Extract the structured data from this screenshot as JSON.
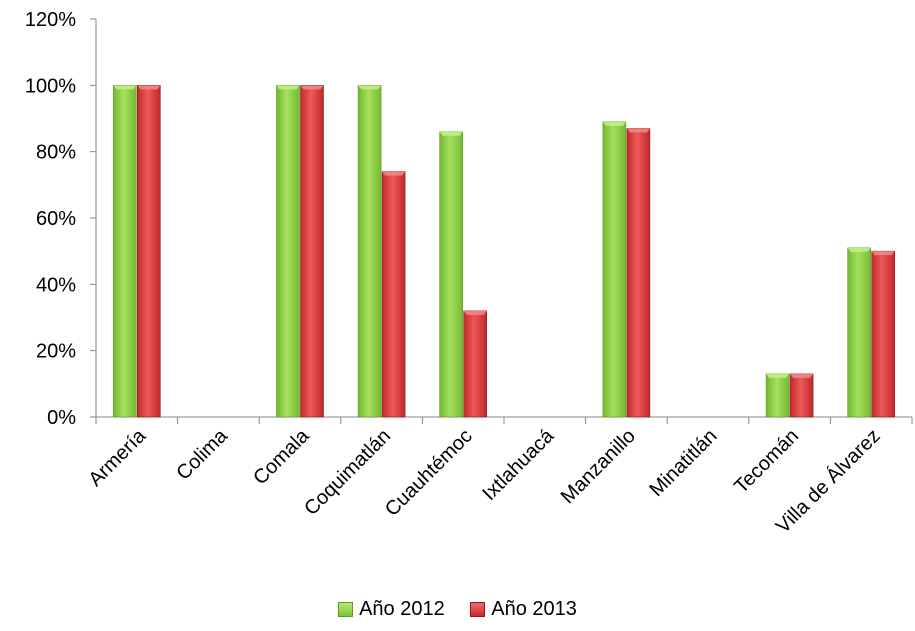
{
  "chart_data": {
    "type": "bar",
    "categories": [
      "Armería",
      "Colima",
      "Comala",
      "Coquimatlán",
      "Cuauhtémoc",
      "Ixtlahuacá",
      "Manzanillo",
      "Minatitlán",
      "Tecomán",
      "Villa de Álvarez"
    ],
    "series": [
      {
        "name": "Año 2012",
        "values": [
          100,
          0,
          100,
          100,
          86,
          0,
          89,
          0,
          13,
          51
        ],
        "color": "#7cc33a"
      },
      {
        "name": "Año 2013",
        "values": [
          100,
          0,
          100,
          74,
          32,
          0,
          87,
          0,
          13,
          50
        ],
        "color": "#d63434"
      }
    ],
    "ylim": [
      0,
      120
    ],
    "yticks": [
      "0%",
      "20%",
      "40%",
      "60%",
      "80%",
      "100%",
      "120%"
    ],
    "grid": false,
    "legend_position": "bottom"
  }
}
